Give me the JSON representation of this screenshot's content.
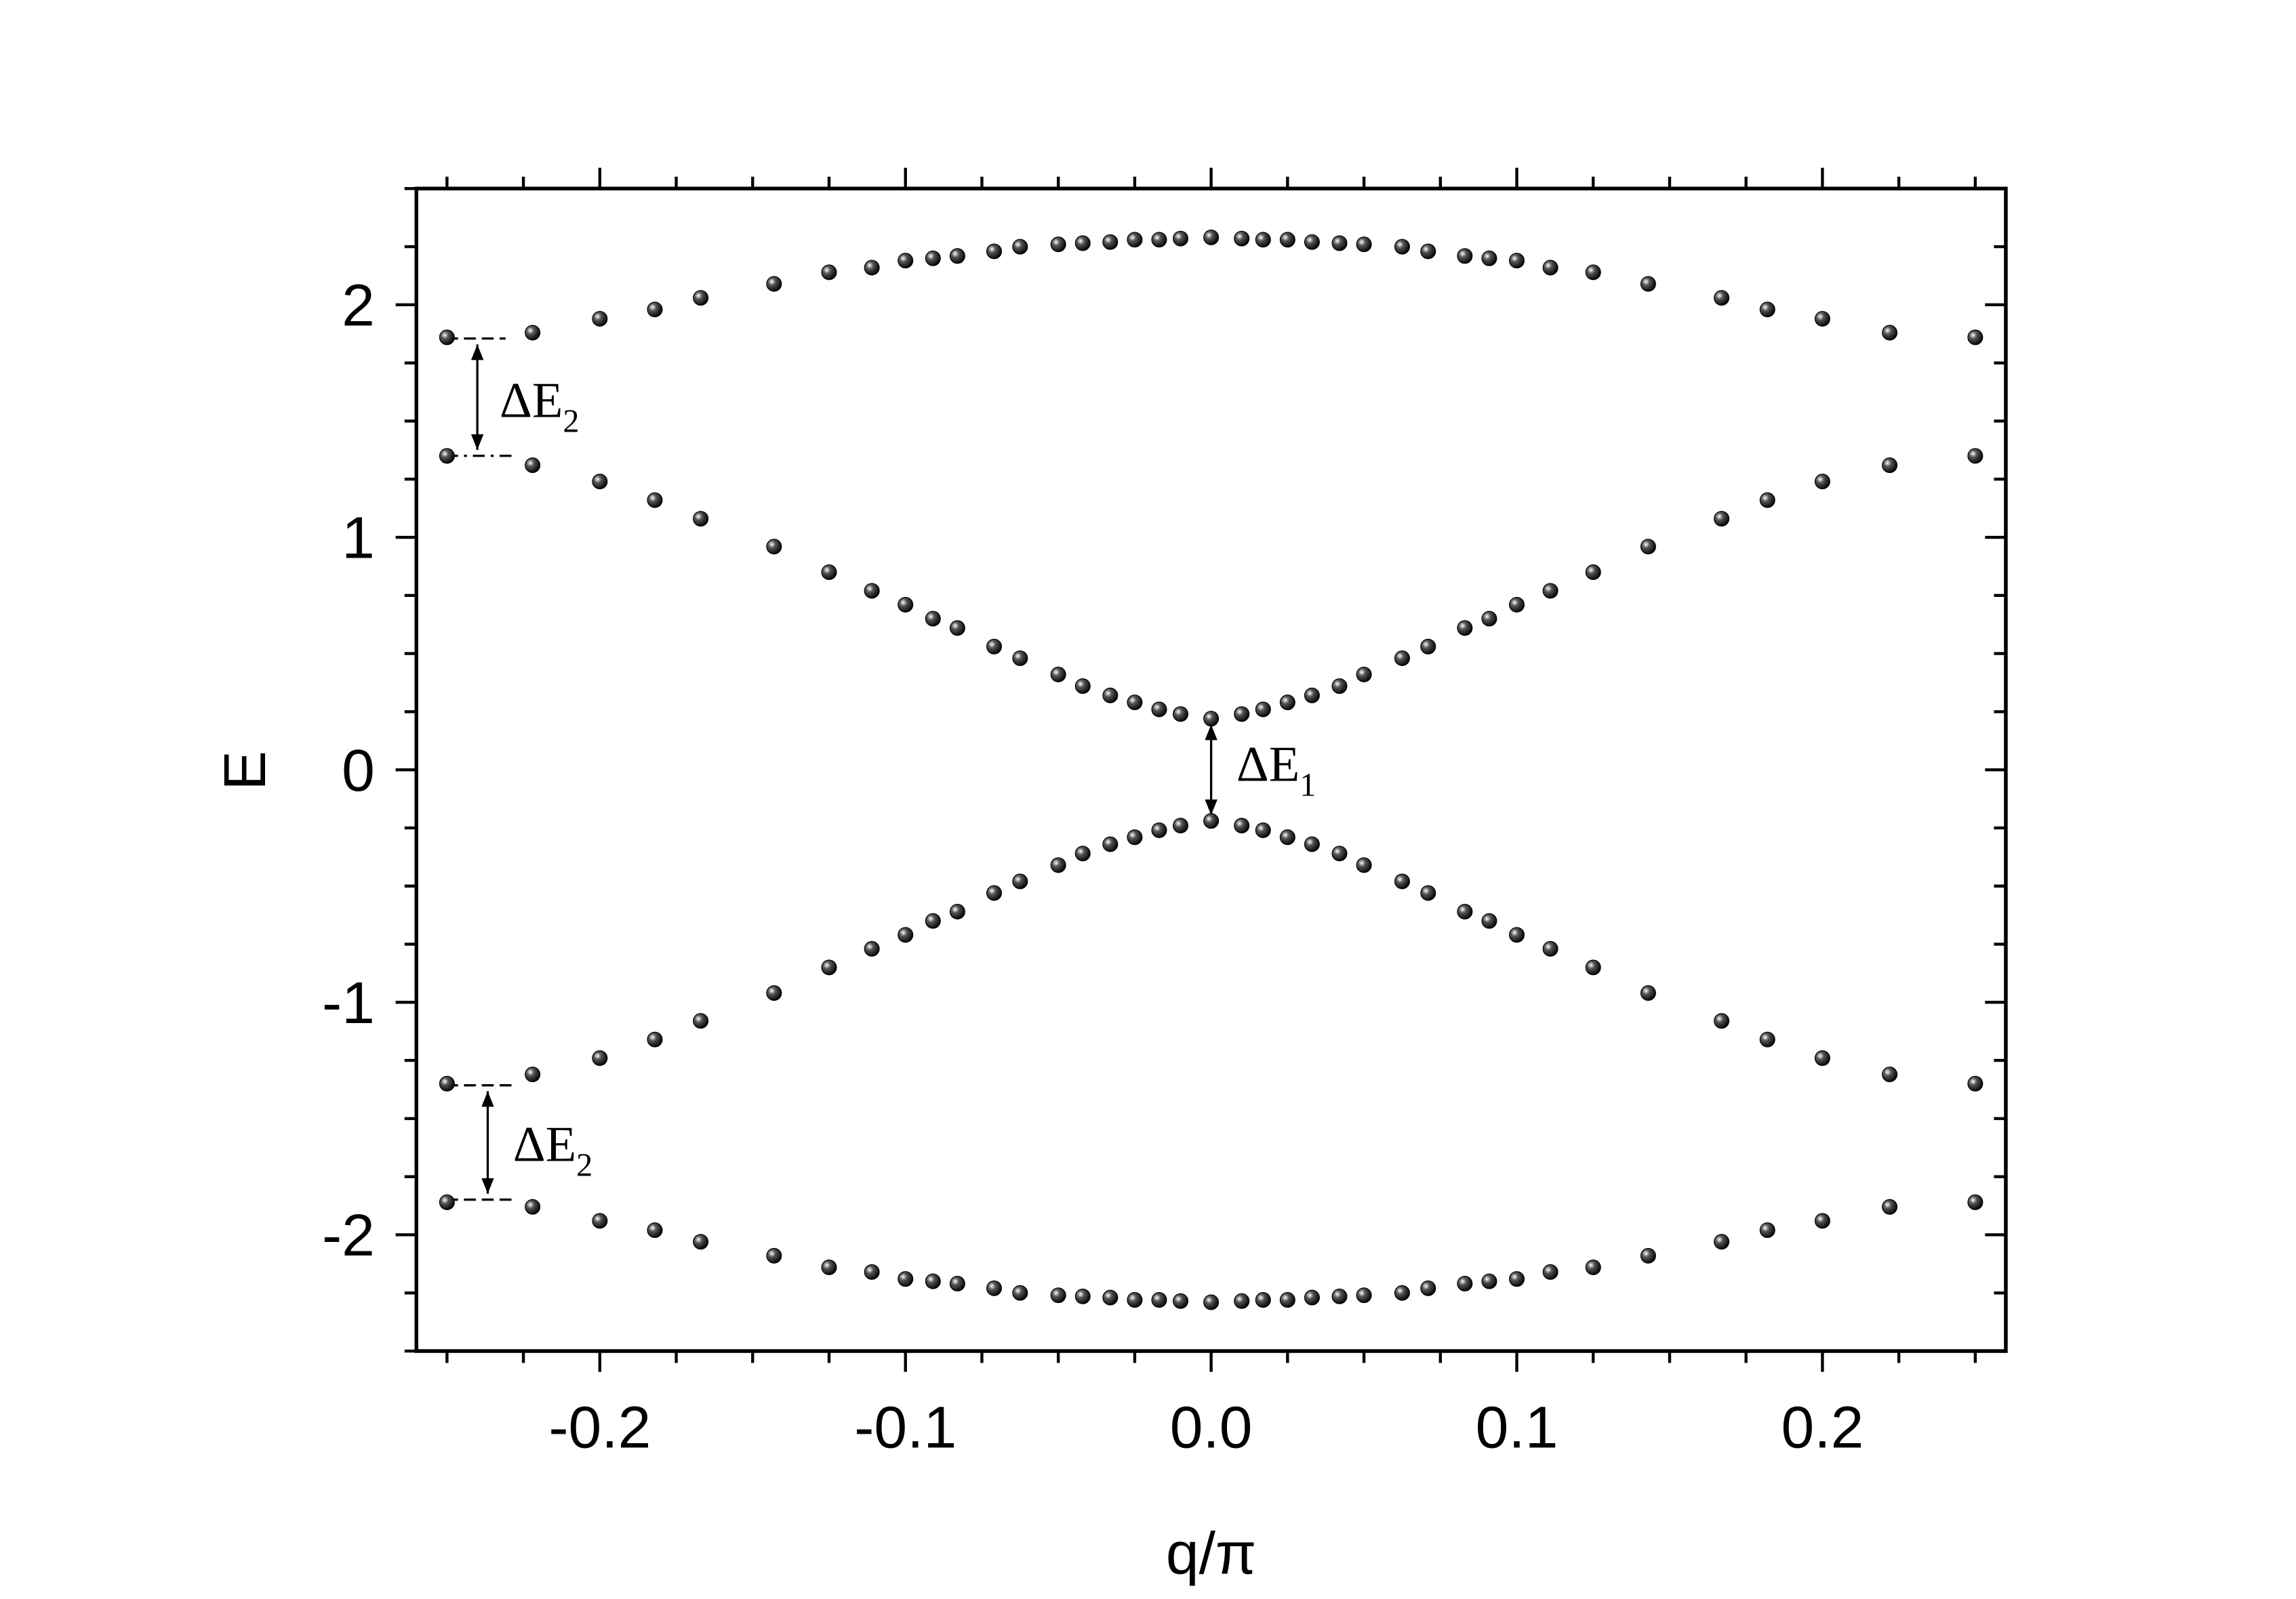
{
  "chart_data": {
    "type": "scatter",
    "xlabel": "q/π",
    "ylabel": "E",
    "x": [
      -0.25,
      -0.222,
      -0.2,
      -0.182,
      -0.167,
      -0.143,
      -0.125,
      -0.111,
      -0.1,
      -0.091,
      -0.083,
      -0.071,
      -0.0625,
      -0.05,
      -0.042,
      -0.033,
      -0.025,
      -0.017,
      -0.01,
      0,
      0.01,
      0.017,
      0.025,
      0.033,
      0.042,
      0.05,
      0.0625,
      0.071,
      0.083,
      0.091,
      0.1,
      0.111,
      0.125,
      0.143,
      0.167,
      0.182,
      0.2,
      0.222,
      0.25
    ],
    "series": [
      {
        "color": "#000000",
        "values": [
          1.86,
          1.88,
          1.94,
          1.98,
          2.03,
          2.09,
          2.14,
          2.16,
          2.19,
          2.2,
          2.21,
          2.23,
          2.25,
          2.26,
          2.265,
          2.27,
          2.28,
          2.28,
          2.285,
          2.29,
          2.285,
          2.28,
          2.28,
          2.27,
          2.265,
          2.26,
          2.25,
          2.23,
          2.21,
          2.2,
          2.19,
          2.16,
          2.14,
          2.09,
          2.03,
          1.98,
          1.94,
          1.88,
          1.86
        ]
      },
      {
        "color": "#000000",
        "values": [
          1.35,
          1.31,
          1.24,
          1.16,
          1.08,
          0.96,
          0.85,
          0.77,
          0.71,
          0.65,
          0.61,
          0.53,
          0.48,
          0.41,
          0.36,
          0.32,
          0.29,
          0.26,
          0.24,
          0.22,
          0.24,
          0.26,
          0.29,
          0.32,
          0.36,
          0.41,
          0.48,
          0.53,
          0.61,
          0.65,
          0.71,
          0.77,
          0.85,
          0.96,
          1.08,
          1.16,
          1.24,
          1.31,
          1.35
        ]
      },
      {
        "color": "#000000",
        "values": [
          -1.35,
          -1.31,
          -1.24,
          -1.16,
          -1.08,
          -0.96,
          -0.85,
          -0.77,
          -0.71,
          -0.65,
          -0.61,
          -0.53,
          -0.48,
          -0.41,
          -0.36,
          -0.32,
          -0.29,
          -0.26,
          -0.24,
          -0.22,
          -0.24,
          -0.26,
          -0.29,
          -0.32,
          -0.36,
          -0.41,
          -0.48,
          -0.53,
          -0.61,
          -0.65,
          -0.71,
          -0.77,
          -0.85,
          -0.96,
          -1.08,
          -1.16,
          -1.24,
          -1.31,
          -1.35
        ]
      },
      {
        "color": "#000000",
        "values": [
          -1.86,
          -1.88,
          -1.94,
          -1.98,
          -2.03,
          -2.09,
          -2.14,
          -2.16,
          -2.19,
          -2.2,
          -2.21,
          -2.23,
          -2.25,
          -2.26,
          -2.265,
          -2.27,
          -2.28,
          -2.28,
          -2.285,
          -2.29,
          -2.285,
          -2.28,
          -2.28,
          -2.27,
          -2.265,
          -2.26,
          -2.25,
          -2.23,
          -2.21,
          -2.2,
          -2.19,
          -2.16,
          -2.14,
          -2.09,
          -2.03,
          -1.98,
          -1.94,
          -1.88,
          -1.86
        ]
      }
    ],
    "xlim": [
      -0.26,
      0.26
    ],
    "ylim": [
      -2.5,
      2.5
    ],
    "xticks": [
      -0.2,
      -0.1,
      {
        "value": 0,
        "label": "0.0"
      },
      0.1,
      0.2
    ],
    "yticks": [
      -2,
      -1,
      0,
      1,
      2
    ],
    "xminorticks": [
      -0.25,
      -0.225,
      -0.175,
      -0.15,
      -0.125,
      -0.075,
      -0.05,
      -0.025,
      0.025,
      0.05,
      0.075,
      0.125,
      0.15,
      0.175,
      0.225,
      0.25
    ],
    "yminorticks": [
      -2.5,
      -2.25,
      -1.75,
      -1.5,
      -1.25,
      -0.75,
      -0.5,
      -0.25,
      0.25,
      0.5,
      0.75,
      1.25,
      1.5,
      1.75,
      2.25,
      2.5
    ],
    "annotations": [
      {
        "text": "ΔE",
        "sub": "2"
      },
      {
        "text": "ΔE",
        "sub": "1"
      },
      {
        "text": "ΔE",
        "sub": "2"
      }
    ]
  }
}
